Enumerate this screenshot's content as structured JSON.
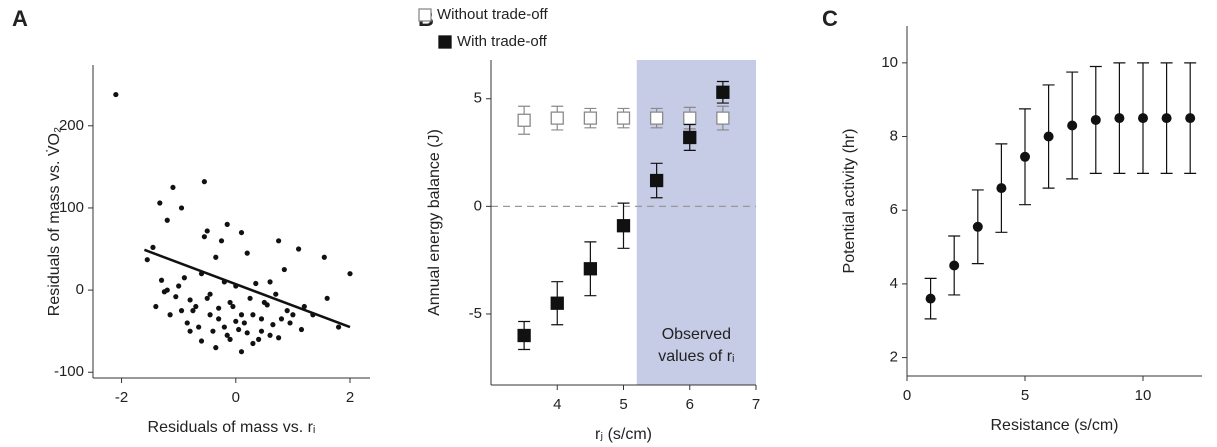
{
  "chart_data": [
    {
      "type": "scatter",
      "panel_label": "A",
      "x_label": "Residuals of mass vs. rᵢ",
      "y_label": "Residuals of mass vs. V̇O₂",
      "xlim": [
        -2.5,
        2.35
      ],
      "xticks": [
        -2,
        0,
        2
      ],
      "ylim": [
        -107,
        274
      ],
      "yticks": [
        -100,
        0,
        100,
        200
      ],
      "color": "#111111",
      "marker": "circle",
      "x": [
        -2.1,
        -1.55,
        -1.33,
        -1.1,
        -1.2,
        -0.95,
        -0.55,
        -0.25,
        -0.35,
        -0.55,
        -0.5,
        -0.15,
        0.1,
        0.2,
        0.6,
        0.75,
        0.85,
        1.1,
        1.55,
        2.0,
        -1.45,
        -1.3,
        -1.2,
        -1.05,
        -0.9,
        -0.8,
        -0.7,
        -0.6,
        -0.45,
        -0.3,
        -0.2,
        -0.1,
        0.0,
        0.1,
        0.25,
        0.35,
        0.45,
        0.55,
        0.7,
        0.9,
        -1.4,
        -1.15,
        -1.0,
        -0.85,
        -0.75,
        -0.65,
        -0.5,
        -0.4,
        -0.3,
        -0.15,
        -0.05,
        0.05,
        0.15,
        0.3,
        0.4,
        0.5,
        0.65,
        0.8,
        1.0,
        1.2,
        -1.25,
        -0.95,
        -0.8,
        -0.6,
        -0.45,
        -0.35,
        -0.2,
        -0.1,
        0.0,
        0.1,
        0.2,
        0.3,
        0.45,
        0.6,
        0.75,
        0.95,
        1.15,
        1.35,
        1.6,
        1.8
      ],
      "values": [
        238,
        37,
        106,
        125,
        85,
        100,
        132,
        60,
        40,
        65,
        72,
        80,
        70,
        45,
        10,
        60,
        25,
        50,
        40,
        20,
        52,
        12,
        0,
        -8,
        15,
        -12,
        -20,
        20,
        -5,
        -22,
        10,
        -15,
        5,
        -30,
        -10,
        8,
        -35,
        -18,
        -5,
        -25,
        -20,
        -30,
        5,
        -40,
        -25,
        -45,
        -10,
        -50,
        -35,
        -55,
        -20,
        -48,
        -40,
        -30,
        -60,
        -15,
        -42,
        -35,
        -30,
        -20,
        -2,
        -25,
        -50,
        -62,
        -30,
        -70,
        -45,
        -60,
        -38,
        -75,
        -52,
        -65,
        -50,
        -55,
        -58,
        -40,
        -48,
        -30,
        -10,
        -45
      ],
      "fit": {
        "x": [
          -1.6,
          2.0
        ],
        "y": [
          49,
          -45
        ]
      }
    },
    {
      "type": "scatter",
      "panel_label": "B",
      "x_label": "rⱼ (s/cm)",
      "y_label": "Annual energy balance (J)",
      "xlim": [
        3,
        7
      ],
      "xticks": [
        4,
        5,
        6,
        7
      ],
      "ylim": [
        -8.3,
        6.8
      ],
      "yticks": [
        -5,
        0,
        5
      ],
      "hline": 0,
      "shade": {
        "x": [
          5.2,
          7
        ],
        "label": [
          "Observed",
          "values of rᵢ"
        ],
        "color": "#c6cbe6"
      },
      "series": [
        {
          "name": "Without trade-off",
          "color": "#8a8a8a",
          "marker": "square",
          "filled": false,
          "x": [
            3.5,
            4,
            4.5,
            5,
            5.5,
            6,
            6.5
          ],
          "values": [
            4.0,
            4.1,
            4.1,
            4.1,
            4.1,
            4.1,
            4.1
          ],
          "errors": [
            0.65,
            0.55,
            0.45,
            0.45,
            0.45,
            0.5,
            0.55
          ]
        },
        {
          "name": "With trade-off",
          "color": "#111111",
          "marker": "square",
          "filled": true,
          "x": [
            3.5,
            4,
            4.5,
            5,
            5.5,
            6,
            6.5
          ],
          "values": [
            -6.0,
            -4.5,
            -2.9,
            -0.9,
            1.2,
            3.2,
            5.3
          ],
          "errors": [
            0.65,
            1.0,
            1.25,
            1.05,
            0.8,
            0.6,
            0.5
          ]
        }
      ]
    },
    {
      "type": "scatter",
      "panel_label": "C",
      "x_label": "Resistance (s/cm)",
      "y_label": "Potential activity (hr)",
      "xlim": [
        0,
        12.5
      ],
      "xticks": [
        0,
        5,
        10
      ],
      "ylim": [
        1.5,
        11
      ],
      "yticks": [
        2,
        4,
        6,
        8,
        10
      ],
      "color": "#111111",
      "marker": "circle",
      "x": [
        1,
        2,
        3,
        4,
        5,
        6,
        7,
        8,
        9,
        10,
        11,
        12
      ],
      "values": [
        3.6,
        4.5,
        5.55,
        6.6,
        7.45,
        8.0,
        8.3,
        8.45,
        8.5,
        8.5,
        8.5,
        8.5
      ],
      "errors": [
        0.55,
        0.8,
        1.0,
        1.2,
        1.3,
        1.4,
        1.45,
        1.45,
        1.5,
        1.5,
        1.5,
        1.5
      ]
    }
  ]
}
